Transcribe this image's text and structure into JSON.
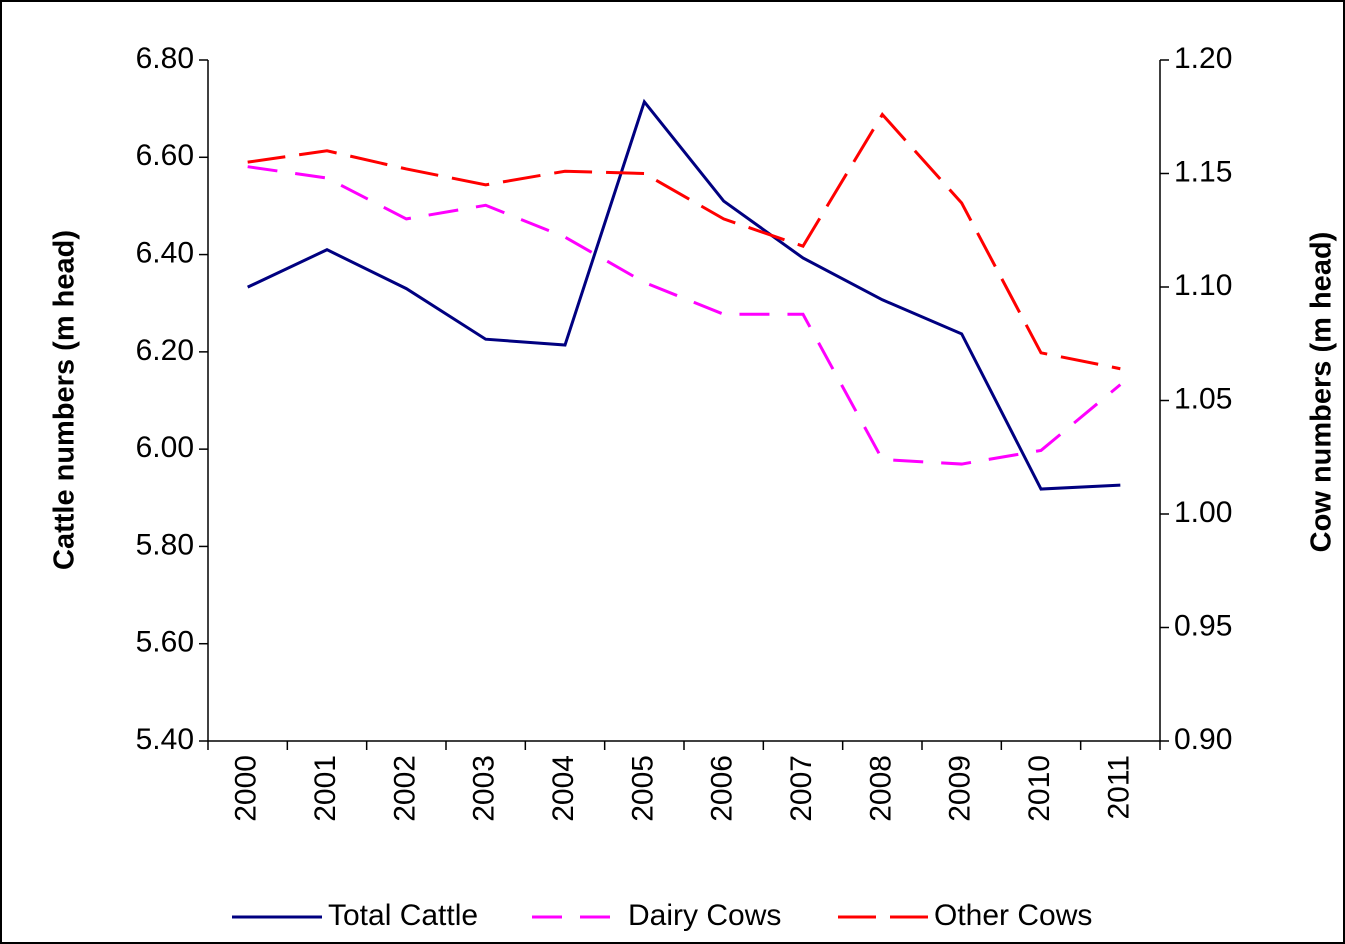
{
  "chart_data": {
    "type": "line",
    "y_label": "Cattle numbers (m head)",
    "y2_label": "Cow numbers (m head)",
    "categories": [
      "2000",
      "2001",
      "2002",
      "2003",
      "2004",
      "2005",
      "2006",
      "2007",
      "2008",
      "2009",
      "2010",
      "2011"
    ],
    "series": [
      {
        "name": "Total Cattle",
        "color": "#000080",
        "dash": "solid",
        "values": [
          6.333,
          6.41,
          6.33,
          6.226,
          6.214,
          6.714,
          6.51,
          6.393,
          6.307,
          6.237,
          5.918,
          5.926
        ]
      },
      {
        "name": "Dairy Cows",
        "color": "#ff00ff",
        "dash": "dashed",
        "axis": "y2",
        "values": [
          1.153,
          1.148,
          1.13,
          1.136,
          1.122,
          1.102,
          1.088,
          1.088,
          1.024,
          1.022,
          1.028,
          1.057
        ]
      },
      {
        "name": "Other Cows",
        "color": "#ff0000",
        "dash": "long-dashed",
        "axis": "y2",
        "values": [
          1.155,
          1.16,
          1.152,
          1.145,
          1.151,
          1.15,
          1.13,
          1.118,
          1.176,
          1.137,
          1.071,
          1.064
        ]
      }
    ],
    "ylim": [
      5.4,
      6.8
    ],
    "yticks": [
      {
        "value": 5.4,
        "label": "5.40"
      },
      {
        "value": 5.6,
        "label": "5.60"
      },
      {
        "value": 5.8,
        "label": "5.80"
      },
      {
        "value": 6.0,
        "label": "6.00"
      },
      {
        "value": 6.2,
        "label": "6.20"
      },
      {
        "value": 6.4,
        "label": "6.40"
      },
      {
        "value": 6.6,
        "label": "6.60"
      },
      {
        "value": 6.8,
        "label": "6.80"
      }
    ],
    "y2lim": [
      0.9,
      1.2
    ],
    "y2ticks": [
      {
        "value": 0.9,
        "label": "0.90"
      },
      {
        "value": 0.95,
        "label": "0.95"
      },
      {
        "value": 1.0,
        "label": "1.00"
      },
      {
        "value": 1.05,
        "label": "1.05"
      },
      {
        "value": 1.1,
        "label": "1.10"
      },
      {
        "value": 1.15,
        "label": "1.15"
      },
      {
        "value": 1.2,
        "label": "1.20"
      }
    ],
    "grid": false,
    "legend": "bottom"
  }
}
